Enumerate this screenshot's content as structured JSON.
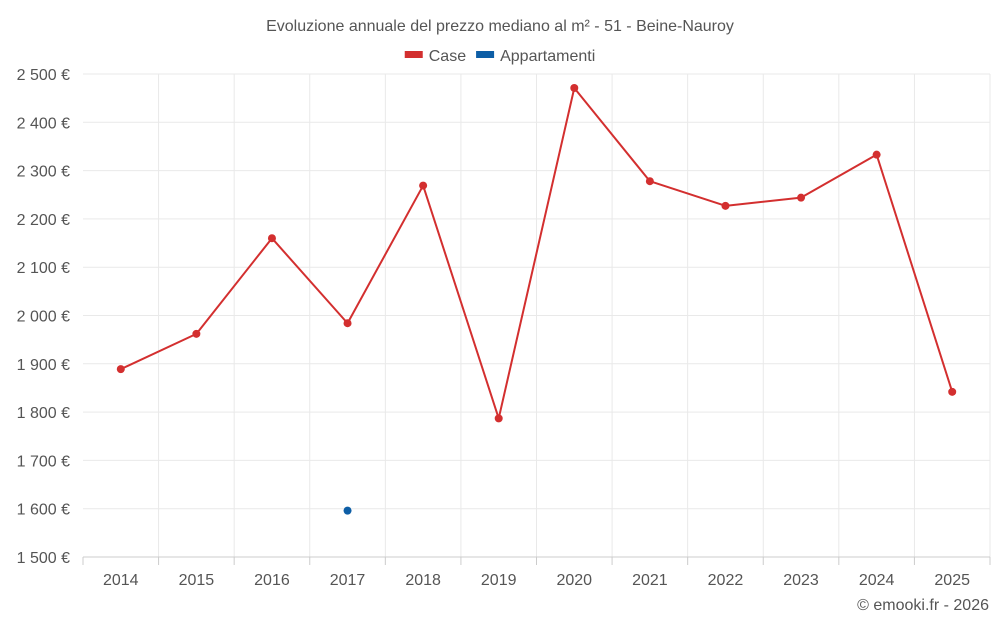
{
  "chart_data": {
    "type": "line",
    "title": "Evoluzione annuale del prezzo mediano al m² - 51 - Beine-Nauroy",
    "categories": [
      "2014",
      "2015",
      "2016",
      "2017",
      "2018",
      "2019",
      "2020",
      "2021",
      "2022",
      "2023",
      "2024",
      "2025"
    ],
    "series": [
      {
        "name": "Case",
        "color": "#d32f2f",
        "values": [
          1889,
          1962,
          2160,
          1984,
          2269,
          1787,
          2471,
          2278,
          2227,
          2244,
          2333,
          1842
        ]
      },
      {
        "name": "Appartamenti",
        "color": "#0d5ea6",
        "values": [
          null,
          null,
          null,
          1596,
          null,
          null,
          null,
          null,
          null,
          null,
          null,
          null
        ]
      }
    ],
    "ylim": [
      1500,
      2500
    ],
    "yticks": [
      1500,
      1600,
      1700,
      1800,
      1900,
      2000,
      2100,
      2200,
      2300,
      2400,
      2500
    ],
    "ytick_labels": [
      "1 500 €",
      "1 600 €",
      "1 700 €",
      "1 800 €",
      "1 900 €",
      "2 000 €",
      "2 100 €",
      "2 200 €",
      "2 300 €",
      "2 400 €",
      "2 500 €"
    ],
    "grid": true,
    "legend_position": "top-center"
  },
  "credit": "© emooki.fr - 2026"
}
